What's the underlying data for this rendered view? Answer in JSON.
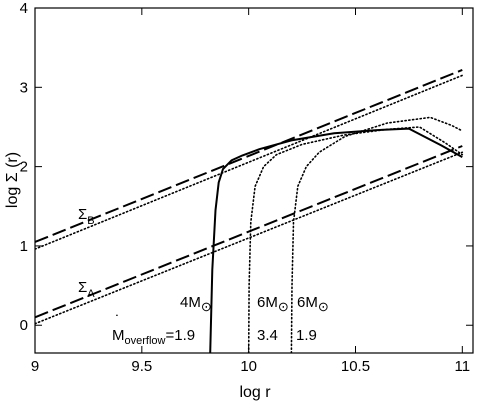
{
  "chart_data": {
    "type": "line",
    "xlabel": "log r",
    "ylabel": "log Σ  (r)",
    "xlim": [
      9,
      11.05
    ],
    "ylim": [
      -0.35,
      4
    ],
    "xticks": [
      9,
      9.5,
      10,
      10.5,
      11
    ],
    "xtick_labels": [
      "9",
      "9.5",
      "10",
      "10.5",
      "11"
    ],
    "yticks": [
      0,
      1,
      2,
      3,
      4
    ],
    "ytick_labels": [
      "0",
      "1",
      "2",
      "3",
      "4"
    ],
    "grid": false,
    "legend": "none",
    "series": [
      {
        "style": "dashed",
        "x": [
          9.0,
          11.0
        ],
        "y": [
          1.05,
          3.22
        ]
      },
      {
        "style": "dotted",
        "x": [
          9.0,
          11.0
        ],
        "y": [
          0.96,
          3.15
        ]
      },
      {
        "style": "dashed",
        "x": [
          9.0,
          11.0
        ],
        "y": [
          0.1,
          2.26
        ]
      },
      {
        "style": "dotted",
        "x": [
          9.0,
          11.0
        ],
        "y": [
          0.02,
          2.18
        ]
      },
      {
        "style": "solid",
        "x": [
          9.82,
          9.83,
          9.845,
          9.86,
          9.88,
          9.92,
          9.97,
          10.05,
          10.2,
          10.4,
          10.6,
          10.75,
          10.9,
          11.0
        ],
        "y": [
          -0.35,
          0.7,
          1.45,
          1.8,
          1.97,
          2.08,
          2.14,
          2.22,
          2.33,
          2.42,
          2.46,
          2.48,
          2.27,
          2.12
        ]
      },
      {
        "style": "dotted",
        "x": [
          10.0,
          10.002,
          10.01,
          10.03,
          10.07,
          10.13,
          10.25,
          10.45,
          10.65,
          10.8,
          10.92,
          11.0
        ],
        "y": [
          -0.35,
          0.5,
          1.3,
          1.75,
          2.0,
          2.15,
          2.28,
          2.4,
          2.47,
          2.5,
          2.3,
          2.15
        ]
      },
      {
        "style": "dotted",
        "x": [
          10.2,
          10.203,
          10.21,
          10.23,
          10.27,
          10.33,
          10.45,
          10.65,
          10.85,
          10.95,
          11.0
        ],
        "y": [
          -0.35,
          0.5,
          1.3,
          1.75,
          2.0,
          2.18,
          2.38,
          2.55,
          2.62,
          2.52,
          2.45
        ]
      }
    ],
    "annotations": {
      "sigma_b": {
        "main": "Σ",
        "sub": "B"
      },
      "sigma_a": {
        "main": "Σ",
        "sub": "A"
      },
      "mass_4": {
        "num": "4M",
        "sym": "⊙"
      },
      "mass_6a": {
        "num": "6M",
        "sym": "⊙"
      },
      "mass_6b": {
        "num": "6M",
        "sym": "⊙"
      },
      "mdot": {
        "main": "M",
        "dot": "˙",
        "sub": "overflow",
        "val": "=1.9"
      },
      "rate_34": "3.4",
      "rate_19": "1.9"
    }
  }
}
